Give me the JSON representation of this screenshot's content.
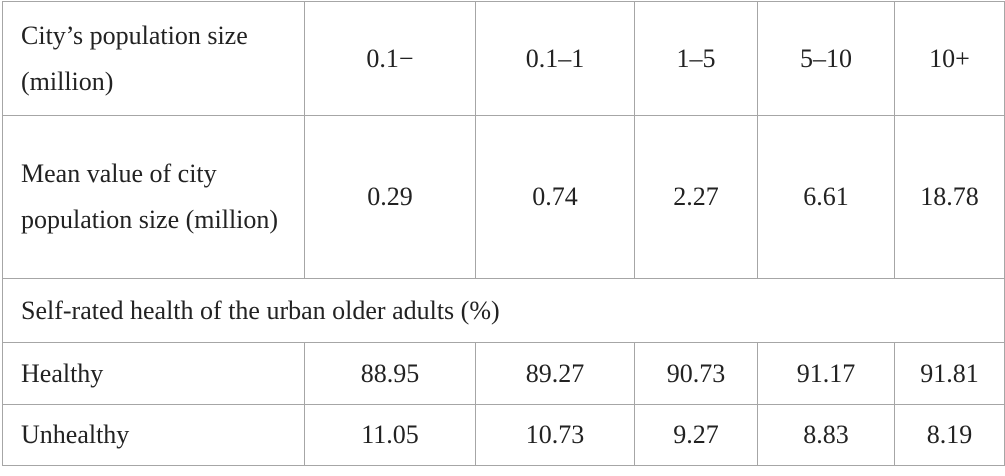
{
  "table": {
    "header": {
      "label": "City’s population size (million)",
      "columns": [
        "0.1−",
        "0.1–1",
        "1–5",
        "5–10",
        "10+"
      ]
    },
    "mean_row": {
      "label": "Mean value of city population size (million)",
      "values": [
        "0.29",
        "0.74",
        "2.27",
        "6.61",
        "18.78"
      ]
    },
    "section_label": "Self-rated health of the urban older adults (%)",
    "healthy_row": {
      "label": "Healthy",
      "values": [
        "88.95",
        "89.27",
        "90.73",
        "91.17",
        "91.81"
      ]
    },
    "unhealthy_row": {
      "label": "Unhealthy",
      "values": [
        "11.05",
        "10.73",
        "9.27",
        "8.83",
        "8.19"
      ]
    }
  }
}
